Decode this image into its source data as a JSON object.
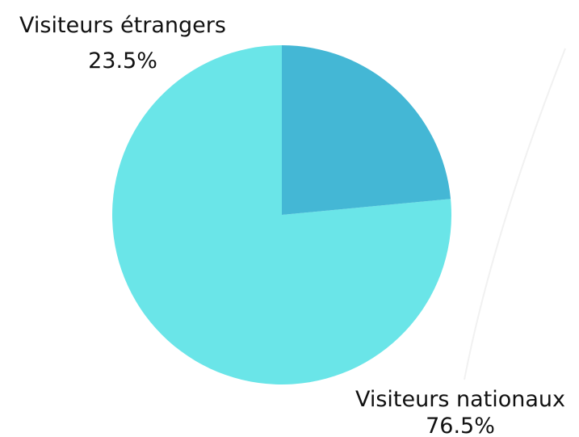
{
  "chart_data": {
    "type": "pie",
    "title": "",
    "start_angle_deg": 0,
    "direction": "counterclockwise",
    "slices": [
      {
        "label": "Visiteurs nationaux",
        "value": 76.5,
        "value_label": "76.5%",
        "color": "#6ae5e8"
      },
      {
        "label": "Visiteurs étrangers",
        "value": 23.5,
        "value_label": "23.5%",
        "color": "#44b7d5"
      }
    ],
    "legend": "none"
  }
}
